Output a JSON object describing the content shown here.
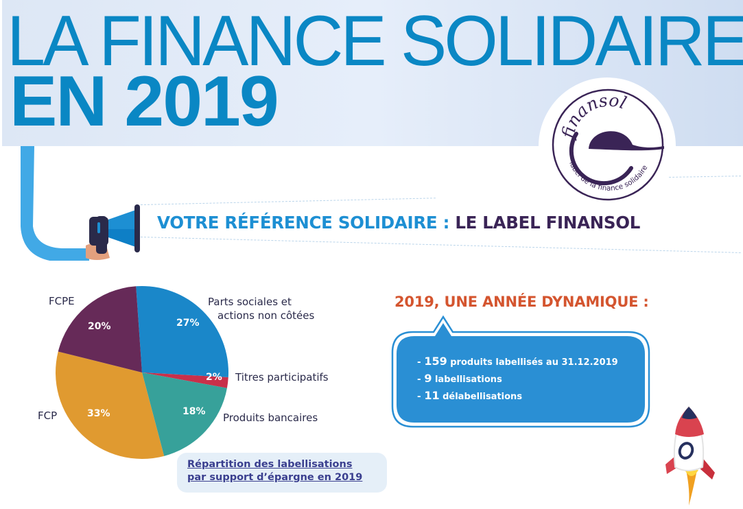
{
  "header": {
    "title_line1": "LA FINANCE SOLIDAIRE",
    "title_line2": "EN 2019",
    "colors": {
      "title": "#0a87c4",
      "band": "#dde7f5"
    }
  },
  "logo": {
    "name": "finansol",
    "tagline": "label de la finance solidaire",
    "color": "#3a2456"
  },
  "subtitle": {
    "part_a": "VOTRE RÉFÉRENCE SOLIDAIRE : ",
    "part_b": "LE LABEL FINANSOL",
    "icon": "megaphone-icon"
  },
  "pie": {
    "labels": {
      "fcpe": "FCPE",
      "parts_line1": "Parts sociales et",
      "parts_line2": "actions non côtées",
      "titres": "Titres participatifs",
      "produits": "Produits bancaires",
      "fcp": "FCP"
    },
    "pcts": {
      "parts": "27%",
      "titres": "2%",
      "produits": "18%",
      "fcp": "33%",
      "fcpe": "20%"
    },
    "caption_line1": "Répartition des labellisations",
    "caption_line2": "par support d’épargne en 2019"
  },
  "dynamic": {
    "title": "2019, UNE ANNÉE DYNAMIQUE :",
    "items": [
      {
        "prefix": "- ",
        "num": "159",
        "text": " produits labellisés au 31.12.2019"
      },
      {
        "prefix": "- ",
        "num": "9",
        "text": " labellisations"
      },
      {
        "prefix": "- ",
        "num": "11",
        "text": " délabellisations"
      }
    ],
    "colors": {
      "title": "#d4552f",
      "bubble": "#2a8fd4"
    }
  },
  "chart_data": {
    "type": "pie",
    "title": "Répartition des labellisations par support d’épargne en 2019",
    "categories": [
      "Parts sociales et actions non côtées",
      "Titres participatifs",
      "Produits bancaires",
      "FCP",
      "FCPE"
    ],
    "values": [
      27,
      2,
      18,
      33,
      20
    ],
    "unit": "%",
    "colors": [
      "#1a87c9",
      "#c8304a",
      "#37a19a",
      "#e09a30",
      "#662a58"
    ],
    "start_angle_deg": 0,
    "direction": "clockwise",
    "legend": "external labels"
  }
}
